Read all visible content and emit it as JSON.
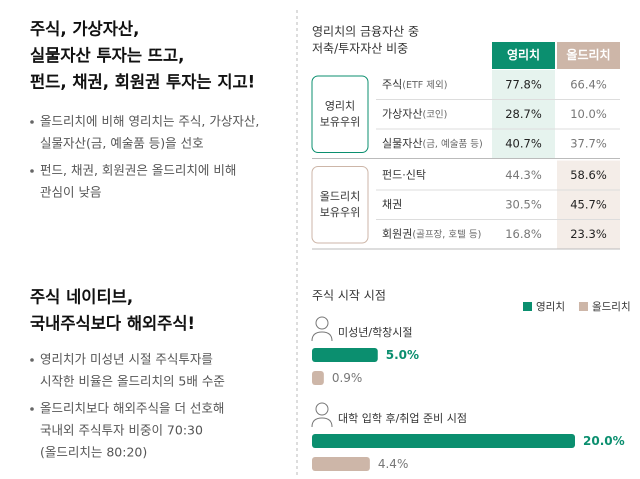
{
  "left": {
    "sections": [
      {
        "heading_lines": [
          "주식, 가상자산,",
          "실물자산 투자는 뜨고,",
          "펀드, 채권, 회원권 투자는 지고!"
        ],
        "bullets": [
          [
            "올드리치에 비해 영리치는 주식, 가상자산,",
            "실물자산(금, 예술품 등)을 선호"
          ],
          [
            "펀드, 채권, 회원권은 올드리치에 비해",
            "관심이 낮음"
          ]
        ]
      },
      {
        "heading_lines": [
          "주식 네이티브,",
          "국내주식보다 해외주식!"
        ],
        "bullets": [
          [
            "영리치가 미성년 시절 주식투자를",
            "시작한 비율은 올드리치의 5배 수준"
          ],
          [
            "올드리치보다 해외주식을 더 선호해",
            "국내외 주식투자 비중이 70:30",
            "(올드리치는 80:20)"
          ]
        ]
      }
    ]
  },
  "table": {
    "title_lines": [
      "영리치의 금융자산 중",
      "저축/투자자산 비중"
    ],
    "columns": [
      "영리치",
      "올드리치"
    ],
    "groups": [
      {
        "label_lines": [
          "영리치",
          "보유우위"
        ],
        "rows": [
          {
            "label": "주식",
            "note": "(ETF 제외)",
            "values": [
              "77.8%",
              "66.4%"
            ]
          },
          {
            "label": "가상자산",
            "note": "(코인)",
            "values": [
              "28.7%",
              "10.0%"
            ]
          },
          {
            "label": "실물자산",
            "note": "(금, 예술품 등)",
            "values": [
              "40.7%",
              "37.7%"
            ]
          }
        ]
      },
      {
        "label_lines": [
          "올드리치",
          "보유우위"
        ],
        "rows": [
          {
            "label": "펀드·신탁",
            "values": [
              "44.3%",
              "58.6%"
            ]
          },
          {
            "label": "채권",
            "values": [
              "30.5%",
              "45.7%"
            ]
          },
          {
            "label": "회원권",
            "note": "(골프장, 호텔 등)",
            "values": [
              "16.8%",
              "23.3%"
            ]
          }
        ]
      }
    ]
  },
  "chart_data": {
    "type": "bar",
    "orientation": "horizontal",
    "title": "주식 시작 시점",
    "categories": [
      "미성년/학창시절",
      "대학 입학 후/취업 준비 시점"
    ],
    "series": [
      {
        "name": "영리치",
        "color": "#0b8f6f",
        "values": [
          5.0,
          20.0
        ],
        "value_labels": [
          "5.0%",
          "20.0%"
        ]
      },
      {
        "name": "올드리치",
        "color": "#cdb6a8",
        "values": [
          0.9,
          4.4
        ],
        "value_labels": [
          "0.9%",
          "4.4%"
        ]
      }
    ],
    "legend": "top-right"
  }
}
